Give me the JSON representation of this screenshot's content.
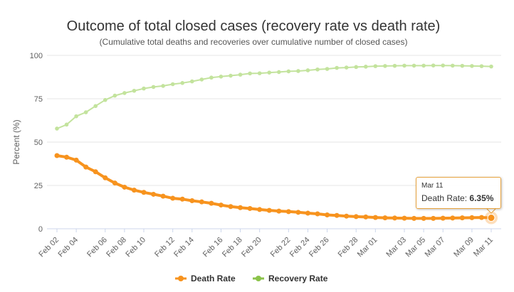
{
  "chart_data": {
    "type": "line",
    "title": "Outcome of total closed cases (recovery rate vs death rate)",
    "subtitle": "(Cumulative total deaths and recoveries over cumulative number of closed cases)",
    "ylabel": "Percent (%)",
    "ylim": [
      0,
      100
    ],
    "yticks": [
      "0",
      "25",
      "50",
      "75",
      "100"
    ],
    "x_tick_labels": [
      "Feb 02",
      "Feb 04",
      "Feb 06",
      "Feb 08",
      "Feb 10",
      "Feb 12",
      "Feb 14",
      "Feb 16",
      "Feb 18",
      "Feb 20",
      "Feb 22",
      "Feb 24",
      "Feb 26",
      "Feb 28",
      "Mar 01",
      "Mar 03",
      "Mar 05",
      "Mar 07",
      "Mar 09",
      "Mar 11"
    ],
    "grid": true,
    "legend_position": "bottom-center",
    "colors": {
      "death": "#f7931e",
      "recovery": "#c3e39d",
      "tooltip_border": "#e8a33d"
    },
    "series": [
      {
        "name": "Death Rate",
        "values": [
          42.2,
          41.3,
          39.6,
          35.6,
          32.9,
          29.4,
          26.4,
          24.0,
          22.3,
          21.0,
          19.9,
          18.8,
          17.6,
          17.1,
          16.2,
          15.5,
          14.7,
          13.7,
          12.8,
          12.2,
          11.7,
          11.1,
          10.6,
          10.2,
          9.9,
          9.5,
          9.0,
          8.6,
          8.0,
          7.7,
          7.3,
          7.0,
          6.8,
          6.5,
          6.3,
          6.2,
          6.1,
          6.0,
          6.0,
          6.0,
          6.1,
          6.2,
          6.3,
          6.4,
          6.5,
          6.35
        ]
      },
      {
        "name": "Recovery Rate",
        "values": [
          57.8,
          60.1,
          64.9,
          67.2,
          70.8,
          74.3,
          76.8,
          78.3,
          79.6,
          80.9,
          81.8,
          82.4,
          83.4,
          84.1,
          85.0,
          86.1,
          87.2,
          87.8,
          88.3,
          88.9,
          89.6,
          89.7,
          90.1,
          90.4,
          90.8,
          91.0,
          91.4,
          91.9,
          92.2,
          92.8,
          93.0,
          93.3,
          93.5,
          93.8,
          93.9,
          94.0,
          94.1,
          94.1,
          94.1,
          94.2,
          94.2,
          94.1,
          94.0,
          93.9,
          93.8,
          93.6
        ]
      }
    ],
    "tooltip": {
      "date": "Mar 11",
      "label": "Death Rate:",
      "value": "6.35%"
    }
  }
}
